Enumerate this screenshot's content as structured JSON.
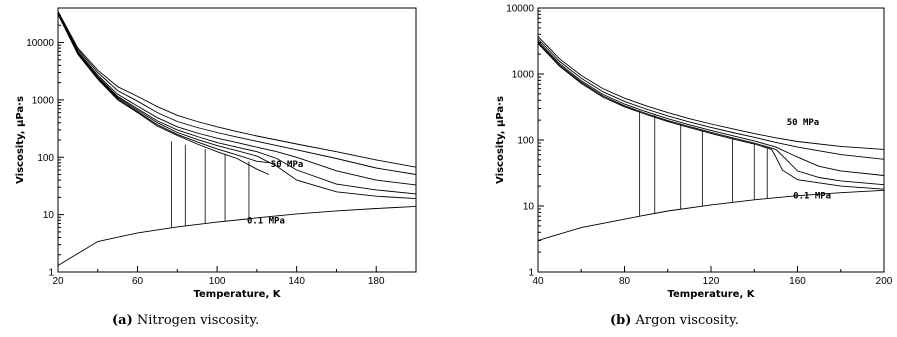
{
  "captions": [
    {
      "tag": "(a)",
      "text": "Nitrogen viscosity."
    },
    {
      "tag": "(b)",
      "text": "Argon viscosity."
    }
  ],
  "chart_data": [
    {
      "type": "line",
      "xlabel": "Temperature, K",
      "ylabel": "Viscosity, μPa·s",
      "xlim": [
        20,
        200
      ],
      "ylim": [
        1,
        40000
      ],
      "yscale": "log",
      "xticks": [
        20,
        60,
        100,
        140,
        180
      ],
      "yticks": [
        1,
        10,
        100,
        1000,
        10000
      ],
      "ytick_labels": [
        "1",
        "10",
        "100",
        "1000",
        "10000"
      ],
      "annotations": [
        {
          "text": "50 MPa",
          "x": 127,
          "y": 67
        },
        {
          "text": "0.1 MPa",
          "x": 115,
          "y": 7
        }
      ],
      "series": [
        {
          "x": [
            20,
            30,
            40,
            50,
            60,
            70,
            80,
            90,
            100,
            110,
            120,
            126
          ],
          "y": [
            31000,
            6200,
            2300,
            1000,
            600,
            350,
            240,
            170,
            125,
            95,
            62,
            50
          ]
        },
        {
          "x": [
            20,
            30,
            40,
            50,
            60,
            70,
            80,
            90,
            100,
            110,
            120,
            127
          ],
          "y": [
            31500,
            6350,
            2350,
            1050,
            620,
            370,
            250,
            185,
            140,
            110,
            85,
            80
          ]
        },
        {
          "x": [
            20,
            30,
            40,
            50,
            60,
            70,
            80,
            90,
            100,
            110,
            120,
            130,
            140,
            160,
            180,
            200
          ],
          "y": [
            32000,
            6500,
            2450,
            1100,
            660,
            400,
            270,
            205,
            160,
            130,
            105,
            70,
            40,
            25,
            21,
            19
          ]
        },
        {
          "x": [
            20,
            30,
            40,
            50,
            60,
            70,
            80,
            90,
            100,
            110,
            120,
            130,
            140,
            160,
            180,
            200
          ],
          "y": [
            32500,
            6700,
            2550,
            1150,
            700,
            430,
            300,
            230,
            180,
            150,
            125,
            95,
            60,
            34,
            27,
            23
          ]
        },
        {
          "x": [
            20,
            30,
            40,
            50,
            60,
            70,
            80,
            90,
            100,
            110,
            120,
            130,
            140,
            160,
            180,
            200
          ],
          "y": [
            33000,
            7000,
            2700,
            1250,
            780,
            490,
            340,
            265,
            215,
            180,
            150,
            125,
            100,
            58,
            40,
            33
          ]
        },
        {
          "x": [
            20,
            30,
            40,
            50,
            60,
            70,
            80,
            90,
            100,
            110,
            120,
            130,
            140,
            160,
            180,
            200
          ],
          "y": [
            34000,
            7500,
            3000,
            1450,
            950,
            600,
            420,
            330,
            270,
            225,
            190,
            160,
            135,
            95,
            65,
            50
          ]
        },
        {
          "x": [
            20,
            30,
            40,
            50,
            60,
            70,
            80,
            90,
            100,
            110,
            120,
            130,
            140,
            160,
            180,
            200
          ],
          "y": [
            35000,
            8000,
            3300,
            1700,
            1150,
            760,
            540,
            420,
            340,
            280,
            235,
            200,
            170,
            125,
            90,
            67
          ]
        },
        {
          "x": [
            20,
            40,
            60,
            77,
            80,
            100,
            115,
            120,
            126,
            140,
            160,
            180,
            200
          ],
          "y": [
            1.3,
            3.4,
            4.8,
            5.9,
            6.1,
            7.4,
            8.4,
            8.8,
            9.2,
            10.3,
            11.6,
            12.8,
            13.9
          ]
        }
      ],
      "phase_boundary_verticals": [
        {
          "x": 77,
          "y_from": 5.9,
          "y_to": 190
        },
        {
          "x": 84,
          "y_from": 6.4,
          "y_to": 165
        },
        {
          "x": 94,
          "y_from": 6.9,
          "y_to": 140
        },
        {
          "x": 104,
          "y_from": 7.6,
          "y_to": 115
        },
        {
          "x": 116,
          "y_from": 8.5,
          "y_to": 85
        }
      ]
    },
    {
      "type": "line",
      "xlabel": "Temperature, K",
      "ylabel": "Viscosity, μPa·s",
      "xlim": [
        40,
        200
      ],
      "ylim": [
        1,
        10000
      ],
      "yscale": "log",
      "xticks": [
        40,
        80,
        120,
        160,
        200
      ],
      "yticks": [
        1,
        10,
        100,
        1000,
        10000
      ],
      "ytick_labels": [
        "1",
        "10",
        "100",
        "1000",
        "10000"
      ],
      "annotations": [
        {
          "text": "50 MPa",
          "x": 155,
          "y": 170
        },
        {
          "text": "0.1 MPa",
          "x": 158,
          "y": 13
        }
      ],
      "series": [
        {
          "x": [
            40,
            50,
            60,
            70,
            80,
            90,
            100,
            110,
            120,
            130,
            140,
            150,
            160,
            180,
            200
          ],
          "y": [
            3700,
            1700,
            950,
            600,
            430,
            330,
            260,
            210,
            175,
            148,
            125,
            108,
            95,
            80,
            72
          ]
        },
        {
          "x": [
            40,
            50,
            60,
            70,
            80,
            90,
            100,
            110,
            120,
            130,
            140,
            150,
            160,
            180,
            200
          ],
          "y": [
            3400,
            1550,
            860,
            540,
            385,
            295,
            232,
            188,
            155,
            130,
            110,
            92,
            78,
            60,
            51
          ]
        },
        {
          "x": [
            40,
            50,
            60,
            70,
            80,
            90,
            100,
            110,
            120,
            130,
            140,
            150,
            160,
            170,
            180,
            200
          ],
          "y": [
            3150,
            1430,
            790,
            490,
            350,
            268,
            210,
            170,
            140,
            116,
            97,
            78,
            55,
            40,
            34,
            29
          ]
        },
        {
          "x": [
            40,
            50,
            60,
            70,
            80,
            90,
            100,
            110,
            120,
            130,
            140,
            150,
            155,
            160,
            170,
            180,
            200
          ],
          "y": [
            3000,
            1360,
            750,
            465,
            330,
            252,
            197,
            160,
            131,
            108,
            90,
            72,
            50,
            34,
            27,
            24,
            21
          ]
        },
        {
          "x": [
            40,
            50,
            60,
            70,
            80,
            90,
            100,
            110,
            120,
            130,
            140,
            148,
            150,
            153,
            160,
            180,
            200
          ],
          "y": [
            2900,
            1310,
            720,
            447,
            318,
            243,
            190,
            154,
            126,
            104,
            87,
            72,
            55,
            35,
            25,
            20,
            18
          ]
        },
        {
          "x": [
            40,
            60,
            80,
            87,
            100,
            120,
            140,
            160,
            180,
            200
          ],
          "y": [
            3.0,
            4.7,
            6.3,
            7.0,
            8.4,
            10.4,
            12.4,
            14.3,
            15.9,
            17.3
          ]
        }
      ],
      "phase_boundary_verticals": [
        {
          "x": 87,
          "y_from": 7.0,
          "y_to": 280
        },
        {
          "x": 94,
          "y_from": 7.6,
          "y_to": 240
        },
        {
          "x": 106,
          "y_from": 8.9,
          "y_to": 175
        },
        {
          "x": 116,
          "y_from": 9.9,
          "y_to": 140
        },
        {
          "x": 130,
          "y_from": 11.4,
          "y_to": 105
        },
        {
          "x": 140,
          "y_from": 12.4,
          "y_to": 85
        },
        {
          "x": 146,
          "y_from": 13.0,
          "y_to": 74
        }
      ]
    }
  ]
}
